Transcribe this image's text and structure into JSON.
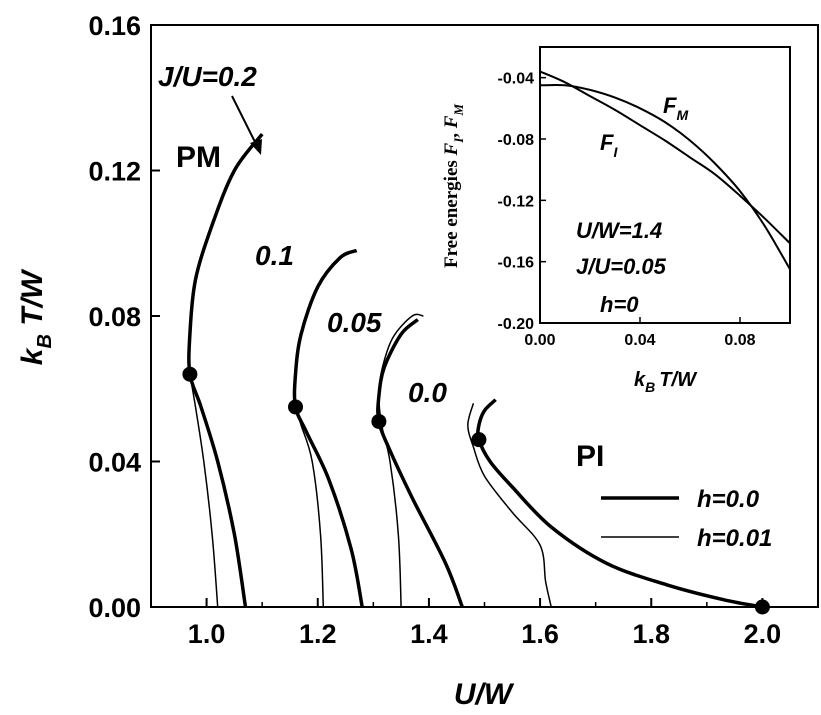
{
  "chart_data": [
    {
      "type": "line",
      "xlabel": "U/W",
      "ylabel": "k_B T/W",
      "xlim": [
        0.9,
        2.1
      ],
      "ylim": [
        0.0,
        0.16
      ],
      "xticks": [
        1.0,
        1.2,
        1.4,
        1.6,
        1.8,
        2.0
      ],
      "yticks": [
        0.0,
        0.04,
        0.08,
        0.12,
        0.16
      ],
      "xtick_labels": [
        "1.0",
        "1.2",
        "1.4",
        "1.6",
        "1.8",
        "2.0"
      ],
      "ytick_labels": [
        "0.00",
        "0.04",
        "0.08",
        "0.12",
        "0.16"
      ],
      "annotations": [
        "J/U=0.2",
        "0.1",
        "0.05",
        "0.0",
        "PM",
        "PI"
      ],
      "legend": {
        "placement": "bottom-right",
        "entries": [
          {
            "label": "h=0.0",
            "style": "thick"
          },
          {
            "label": "h=0.01",
            "style": "thin"
          }
        ]
      },
      "series": [
        {
          "name": "J/U=0.2",
          "h": "0.0",
          "points": [
            [
              1.07,
              0.0
            ],
            [
              1.05,
              0.02
            ],
            [
              1.02,
              0.04
            ],
            [
              0.99,
              0.055
            ],
            [
              0.97,
              0.064
            ],
            [
              0.97,
              0.075
            ],
            [
              0.98,
              0.09
            ],
            [
              1.01,
              0.105
            ],
            [
              1.05,
              0.12
            ],
            [
              1.1,
              0.13
            ]
          ]
        },
        {
          "name": "J/U=0.2",
          "h": "0.01",
          "points": [
            [
              1.02,
              0.0
            ],
            [
              1.01,
              0.02
            ],
            [
              0.995,
              0.04
            ],
            [
              0.98,
              0.055
            ],
            [
              0.97,
              0.064
            ]
          ]
        },
        {
          "name": "J/U=0.1",
          "h": "0.0",
          "points": [
            [
              1.28,
              0.0
            ],
            [
              1.26,
              0.016
            ],
            [
              1.22,
              0.035
            ],
            [
              1.18,
              0.048
            ],
            [
              1.16,
              0.055
            ],
            [
              1.16,
              0.064
            ],
            [
              1.17,
              0.075
            ],
            [
              1.2,
              0.088
            ],
            [
              1.24,
              0.096
            ],
            [
              1.27,
              0.098
            ]
          ]
        },
        {
          "name": "J/U=0.1",
          "h": "0.01",
          "points": [
            [
              1.21,
              0.0
            ],
            [
              1.205,
              0.02
            ],
            [
              1.19,
              0.04
            ],
            [
              1.17,
              0.05
            ],
            [
              1.16,
              0.055
            ]
          ]
        },
        {
          "name": "J/U=0.05",
          "h": "0.0",
          "points": [
            [
              1.46,
              0.0
            ],
            [
              1.43,
              0.012
            ],
            [
              1.37,
              0.03
            ],
            [
              1.33,
              0.043
            ],
            [
              1.31,
              0.051
            ],
            [
              1.31,
              0.058
            ],
            [
              1.32,
              0.066
            ],
            [
              1.35,
              0.075
            ],
            [
              1.38,
              0.079
            ]
          ]
        },
        {
          "name": "J/U=0.05",
          "h": "0.01",
          "points": [
            [
              1.35,
              0.0
            ],
            [
              1.345,
              0.02
            ],
            [
              1.33,
              0.04
            ],
            [
              1.315,
              0.05
            ],
            [
              1.31,
              0.058
            ],
            [
              1.315,
              0.065
            ],
            [
              1.335,
              0.074
            ],
            [
              1.37,
              0.08
            ],
            [
              1.39,
              0.08
            ]
          ]
        },
        {
          "name": "J/U=0.0",
          "h": "0.0",
          "points": [
            [
              2.0,
              0.0
            ],
            [
              1.93,
              0.002
            ],
            [
              1.83,
              0.006
            ],
            [
              1.72,
              0.012
            ],
            [
              1.62,
              0.022
            ],
            [
              1.55,
              0.033
            ],
            [
              1.51,
              0.04
            ],
            [
              1.49,
              0.046
            ],
            [
              1.49,
              0.05
            ],
            [
              1.5,
              0.054
            ],
            [
              1.52,
              0.057
            ]
          ]
        },
        {
          "name": "J/U=0.0",
          "h": "0.01",
          "points": [
            [
              1.62,
              0.0
            ],
            [
              1.61,
              0.007
            ],
            [
              1.6,
              0.017
            ],
            [
              1.55,
              0.026
            ],
            [
              1.5,
              0.036
            ],
            [
              1.48,
              0.044
            ],
            [
              1.47,
              0.05
            ],
            [
              1.48,
              0.056
            ]
          ]
        }
      ],
      "markers": [
        [
          0.97,
          0.064
        ],
        [
          1.16,
          0.055
        ],
        [
          1.31,
          0.051
        ],
        [
          1.49,
          0.046
        ],
        [
          2.0,
          0.0
        ]
      ]
    },
    {
      "type": "line",
      "ylabel": "Free energies F_I, F_M",
      "xlabel": "k_B T/W",
      "xlim": [
        0.0,
        0.1
      ],
      "ylim": [
        -0.2,
        -0.02
      ],
      "xticks": [
        0.0,
        0.04,
        0.08
      ],
      "yticks": [
        -0.04,
        -0.08,
        -0.12,
        -0.16,
        -0.2
      ],
      "xtick_labels": [
        "0.00",
        "0.04",
        "0.08"
      ],
      "ytick_labels": [
        "-0.04",
        "-0.08",
        "-0.12",
        "-0.16",
        "-0.20"
      ],
      "annotations": [
        "U/W=1.4",
        "J/U=0.05",
        "h=0"
      ],
      "series": [
        {
          "name": "F_I",
          "x": [
            0.0,
            0.01,
            0.02,
            0.03,
            0.04,
            0.05,
            0.06,
            0.07,
            0.08,
            0.09,
            0.1
          ],
          "values": [
            -0.036,
            -0.043,
            -0.052,
            -0.061,
            -0.071,
            -0.081,
            -0.092,
            -0.103,
            -0.117,
            -0.132,
            -0.148
          ]
        },
        {
          "name": "F_M",
          "x": [
            0.0,
            0.01,
            0.02,
            0.03,
            0.04,
            0.05,
            0.06,
            0.07,
            0.08,
            0.09,
            0.1
          ],
          "values": [
            -0.045,
            -0.045,
            -0.048,
            -0.053,
            -0.06,
            -0.069,
            -0.081,
            -0.096,
            -0.114,
            -0.137,
            -0.165
          ]
        }
      ]
    }
  ],
  "text": {
    "xlabel": "U/W",
    "ylabel_main": "k",
    "ylabel_sub": "B",
    "ylabel_rest": " T/W",
    "ann_j02": "J/U=0.2",
    "ann_pm": "PM",
    "ann_01": "0.1",
    "ann_005": "0.05",
    "ann_00": "0.0",
    "ann_pi": "PI",
    "legend_h0": "h=0.0",
    "legend_h001": "h=0.01",
    "inset_ylabel_pre": "Free energies ",
    "inset_fi": "F",
    "inset_fi_sub": "I",
    "inset_sep": ", ",
    "inset_fm": "F",
    "inset_fm_sub": "M",
    "inset_xlabel_main": "k",
    "inset_xlabel_sub": "B",
    "inset_xlabel_rest": "T/W",
    "inset_curve_fm": "F",
    "inset_curve_fm_sub": "M",
    "inset_curve_fi": "F",
    "inset_curve_fi_sub": "I",
    "inset_uw": "U/W=1.4",
    "inset_ju": "J/U=0.05",
    "inset_h": "h=0"
  }
}
